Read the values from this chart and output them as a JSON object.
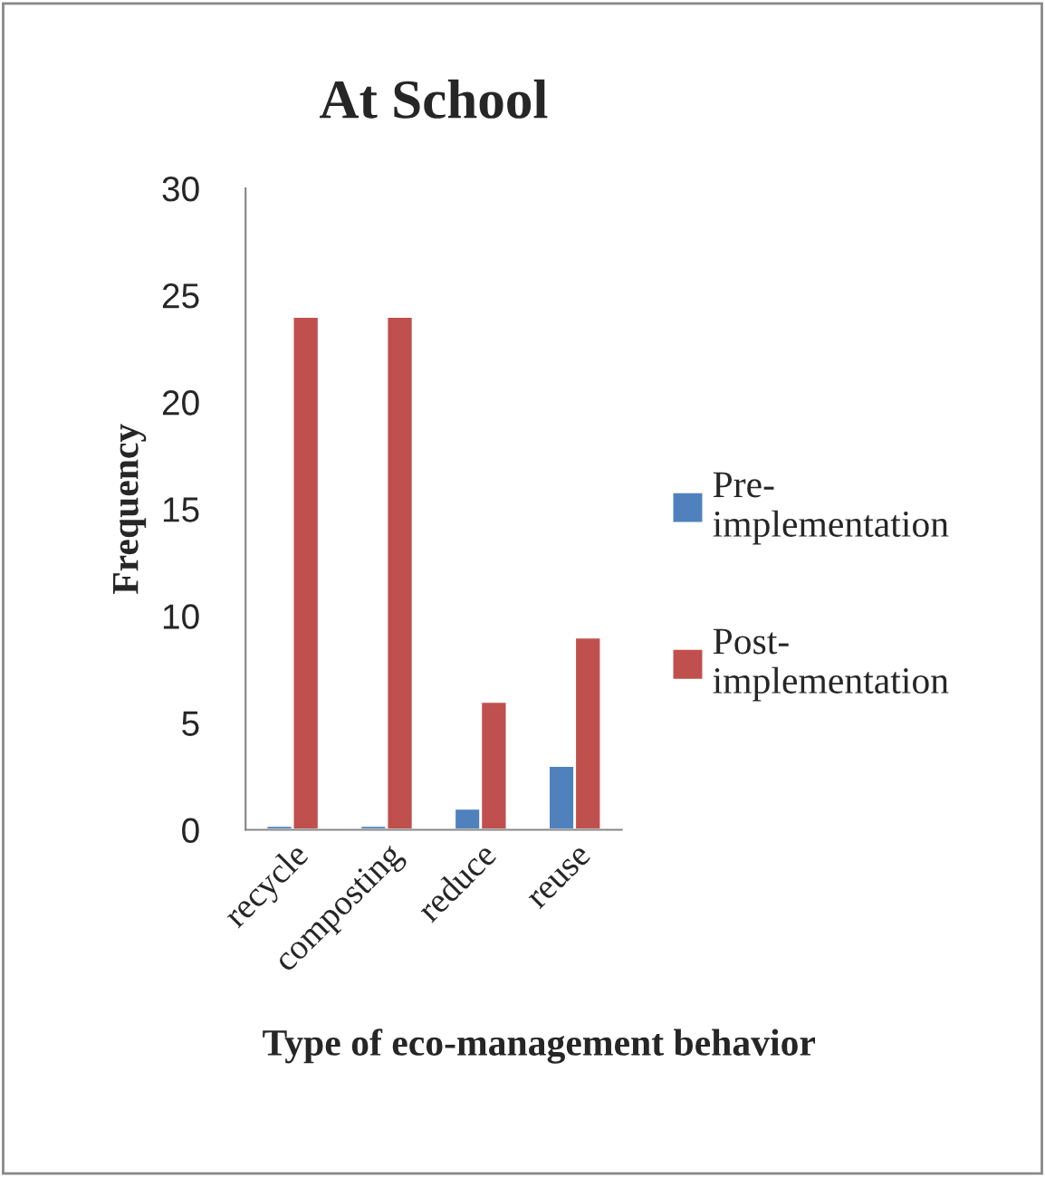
{
  "chart_data": {
    "type": "bar",
    "title": "At School",
    "xlabel": "Type of eco-management behavior",
    "ylabel": "Frequency",
    "categories": [
      "recycle",
      "composting",
      "reduce",
      "reuse"
    ],
    "series": [
      {
        "name": "Pre-implementation",
        "color": "#4f81bd",
        "values": [
          0.2,
          0.2,
          1,
          3
        ]
      },
      {
        "name": "Post-implementation",
        "color": "#c0504d",
        "values": [
          24,
          24,
          6,
          9
        ]
      }
    ],
    "ylim": [
      0,
      30
    ],
    "yticks": [
      0,
      5,
      10,
      15,
      20,
      25,
      30
    ],
    "grid": false,
    "legend": "right"
  }
}
